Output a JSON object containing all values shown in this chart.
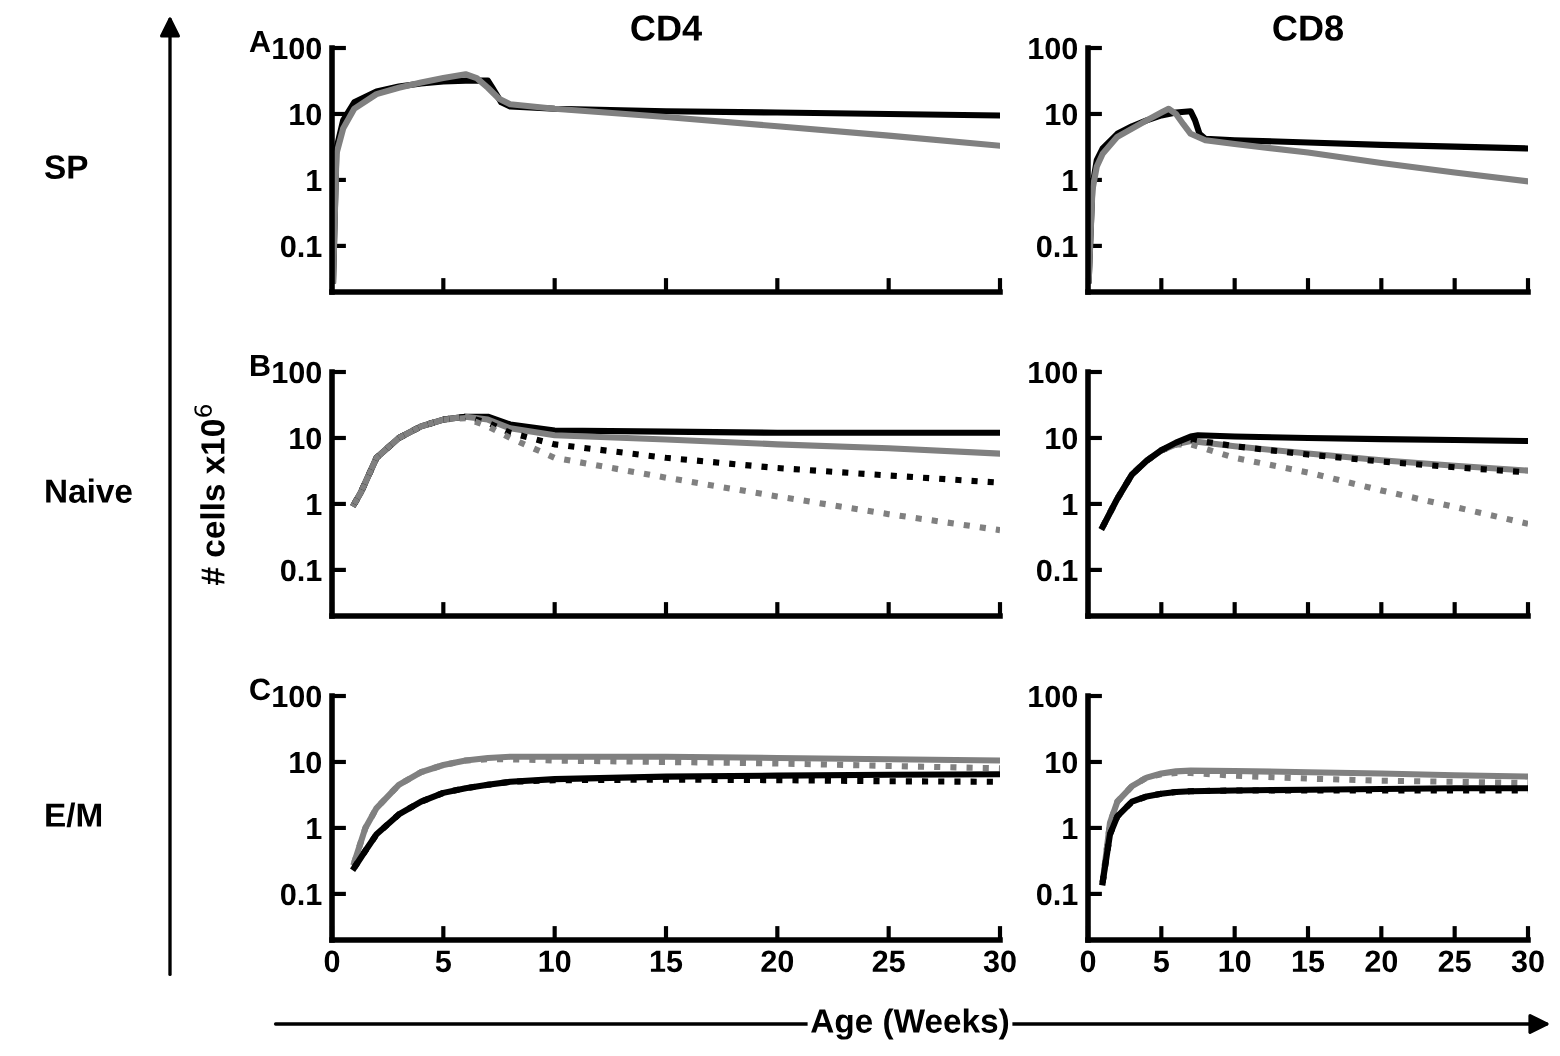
{
  "chart_data": [
    {
      "type": "line",
      "title": "CD4",
      "annotations": [
        "A",
        "SP"
      ],
      "xlim": [
        0,
        30
      ],
      "ylim": [
        0.02,
        100
      ],
      "xticks": [
        0,
        5,
        10,
        15,
        20,
        25,
        30
      ],
      "yticks": [
        0.1,
        1,
        10,
        100
      ],
      "log": "y",
      "grid": false,
      "tick_labels": "y",
      "series": [
        {
          "color": "#000000",
          "line_style": "solid",
          "x": [
            0.05,
            0.2,
            0.5,
            1,
            2,
            3,
            4,
            5,
            6,
            7,
            7.2,
            7.6,
            8,
            10,
            15,
            20,
            25,
            30
          ],
          "values": [
            0.03,
            3,
            8,
            15,
            22,
            26,
            29,
            31,
            32,
            32,
            25,
            15,
            13,
            12,
            11,
            10.5,
            10,
            9.5
          ]
        },
        {
          "color": "#808080",
          "line_style": "solid",
          "x": [
            0.05,
            0.2,
            0.5,
            1,
            2,
            3,
            4,
            5,
            6,
            6.5,
            7,
            7.5,
            8,
            10,
            15,
            20,
            25,
            30
          ],
          "values": [
            0.03,
            2.5,
            6,
            12,
            20,
            25,
            30,
            35,
            40,
            35,
            25,
            17,
            14,
            12,
            9,
            6.5,
            4.7,
            3.3
          ]
        }
      ]
    },
    {
      "type": "line",
      "title": "CD8",
      "xlim": [
        0,
        30
      ],
      "ylim": [
        0.02,
        100
      ],
      "xticks": [
        0,
        5,
        10,
        15,
        20,
        25,
        30
      ],
      "yticks": [
        0.1,
        1,
        10,
        100
      ],
      "log": "y",
      "grid": false,
      "tick_labels": "y",
      "series": [
        {
          "color": "#000000",
          "line_style": "solid",
          "x": [
            0.05,
            0.3,
            0.6,
            1,
            2,
            3,
            4,
            5,
            6,
            7,
            7.3,
            7.6,
            8,
            10,
            15,
            20,
            25,
            30
          ],
          "values": [
            0.03,
            0.8,
            2,
            3,
            5,
            6.5,
            8,
            9.5,
            10.5,
            11,
            8,
            5,
            4.2,
            4,
            3.7,
            3.4,
            3.2,
            3
          ]
        },
        {
          "color": "#808080",
          "line_style": "solid",
          "x": [
            0.05,
            0.3,
            0.6,
            1,
            2,
            3,
            4,
            5,
            5.5,
            6,
            6.5,
            7,
            8,
            10,
            15,
            20,
            25,
            30
          ],
          "values": [
            0.03,
            0.7,
            1.6,
            2.5,
            4.5,
            6,
            8,
            10.5,
            12,
            10,
            7,
            5,
            4,
            3.5,
            2.6,
            1.8,
            1.3,
            0.95
          ]
        }
      ]
    },
    {
      "type": "line",
      "annotations": [
        "B",
        "Naive"
      ],
      "ylabel": "# cells x10$^{6}$",
      "xlim": [
        0,
        30
      ],
      "ylim": [
        0.02,
        100
      ],
      "xticks": [
        0,
        5,
        10,
        15,
        20,
        25,
        30
      ],
      "yticks": [
        0.1,
        1,
        10,
        100
      ],
      "log": "y",
      "grid": false,
      "tick_labels": "y",
      "series": [
        {
          "color": "#000000",
          "line_style": "solid",
          "x": [
            1,
            1.3,
            2,
            3,
            4,
            5,
            6,
            7,
            8,
            10,
            15,
            20,
            25,
            30
          ],
          "values": [
            1,
            1.5,
            5,
            10,
            15,
            19,
            21,
            21,
            16,
            13,
            12.5,
            12,
            12,
            12
          ]
        },
        {
          "color": "#808080",
          "line_style": "solid",
          "x": [
            1,
            1.3,
            2,
            3,
            4,
            5,
            6,
            7,
            8,
            10,
            15,
            20,
            25,
            30
          ],
          "values": [
            1,
            1.5,
            5,
            10,
            15,
            19,
            21,
            19,
            14,
            11,
            9.5,
            8,
            7,
            5.8
          ]
        },
        {
          "color": "#000000",
          "line_style": "dotted",
          "x": [
            1,
            1.3,
            2,
            3,
            4,
            5,
            6,
            7,
            8,
            10,
            15,
            20,
            25,
            30
          ],
          "values": [
            1,
            1.5,
            5,
            10,
            15,
            19,
            21,
            17,
            12,
            8,
            5,
            3.5,
            2.7,
            2.1
          ]
        },
        {
          "color": "#808080",
          "line_style": "dotted",
          "x": [
            1,
            1.3,
            2,
            3,
            4,
            5,
            6,
            7,
            8,
            10,
            15,
            20,
            25,
            30
          ],
          "values": [
            1,
            1.5,
            5,
            10,
            15,
            19,
            20,
            15,
            10,
            5,
            2.5,
            1.3,
            0.7,
            0.4
          ]
        }
      ]
    },
    {
      "type": "line",
      "xlim": [
        0,
        30
      ],
      "ylim": [
        0.02,
        100
      ],
      "xticks": [
        0,
        5,
        10,
        15,
        20,
        25,
        30
      ],
      "yticks": [
        0.1,
        1,
        10,
        100
      ],
      "log": "y",
      "grid": false,
      "tick_labels": "y",
      "series": [
        {
          "color": "#808080",
          "line_style": "solid",
          "x": [
            1,
            2,
            3,
            4,
            5,
            6,
            7,
            10,
            15,
            20,
            25,
            30
          ],
          "values": [
            0.45,
            1.2,
            2.8,
            4.5,
            6.5,
            8,
            9,
            7.5,
            5.8,
            4.6,
            3.8,
            3.2
          ]
        },
        {
          "color": "#000000",
          "line_style": "dotted",
          "x": [
            1,
            2,
            3,
            4,
            5,
            6,
            7,
            10,
            15,
            20,
            25,
            30
          ],
          "values": [
            0.45,
            1.2,
            2.8,
            4.5,
            6.5,
            8,
            9.5,
            7.5,
            5.6,
            4.4,
            3.6,
            3
          ]
        },
        {
          "color": "#808080",
          "line_style": "dotted",
          "x": [
            1,
            2,
            3,
            4,
            5,
            6,
            7,
            10,
            15,
            20,
            25,
            30
          ],
          "values": [
            0.45,
            1.2,
            2.8,
            4.5,
            6.5,
            8,
            8,
            5,
            3,
            1.6,
            0.9,
            0.5
          ]
        },
        {
          "color": "#000000",
          "line_style": "solid",
          "x": [
            1,
            2,
            3,
            4,
            5,
            6,
            7,
            7.5,
            10,
            15,
            20,
            25,
            30
          ],
          "values": [
            0.45,
            1.2,
            2.8,
            4.5,
            6.5,
            8.5,
            10.5,
            11,
            10.5,
            10,
            9.6,
            9.3,
            9
          ]
        }
      ]
    },
    {
      "type": "line",
      "annotations": [
        "C",
        "E/M"
      ],
      "xlabel": "Age (Weeks)",
      "xlim": [
        0,
        30
      ],
      "ylim": [
        0.02,
        100
      ],
      "xticks": [
        0,
        5,
        10,
        15,
        20,
        25,
        30
      ],
      "yticks": [
        0.1,
        1,
        10,
        100
      ],
      "log": "y",
      "grid": false,
      "series": [
        {
          "color": "#808080",
          "line_style": "solid",
          "x": [
            1,
            1.5,
            2,
            3,
            4,
            5,
            6,
            7,
            8,
            10,
            15,
            20,
            25,
            30
          ],
          "values": [
            0.3,
            1,
            2,
            4.5,
            7,
            9,
            10.5,
            11.5,
            12,
            12,
            12,
            11.5,
            11,
            10.5
          ]
        },
        {
          "color": "#808080",
          "line_style": "dotted",
          "x": [
            1,
            1.5,
            2,
            3,
            4,
            5,
            6,
            7,
            8,
            10,
            15,
            20,
            25,
            30
          ],
          "values": [
            0.3,
            1,
            2,
            4.5,
            7,
            9,
            10.5,
            11,
            11,
            10.5,
            10,
            9.5,
            8.7,
            8
          ]
        },
        {
          "color": "#000000",
          "line_style": "solid",
          "x": [
            1,
            1.5,
            2,
            3,
            4,
            5,
            6,
            7,
            8,
            10,
            15,
            20,
            25,
            30
          ],
          "values": [
            0.25,
            0.45,
            0.8,
            1.6,
            2.5,
            3.4,
            4,
            4.5,
            5,
            5.5,
            6,
            6.2,
            6.4,
            6.5
          ]
        },
        {
          "color": "#000000",
          "line_style": "dotted",
          "x": [
            1,
            1.5,
            2,
            3,
            4,
            5,
            6,
            7,
            8,
            10,
            15,
            20,
            25,
            30
          ],
          "values": [
            0.25,
            0.45,
            0.8,
            1.6,
            2.5,
            3.4,
            4,
            4.5,
            5,
            5.3,
            5.4,
            5.3,
            5.1,
            5
          ]
        }
      ]
    },
    {
      "type": "line",
      "xlim": [
        0,
        30
      ],
      "ylim": [
        0.02,
        100
      ],
      "xticks": [
        0,
        5,
        10,
        15,
        20,
        25,
        30
      ],
      "yticks": [
        0.1,
        1,
        10,
        100
      ],
      "log": "y",
      "grid": false,
      "series": [
        {
          "color": "#808080",
          "line_style": "solid",
          "x": [
            1,
            1.5,
            2,
            3,
            4,
            5,
            6,
            7,
            10,
            15,
            20,
            25,
            30
          ],
          "values": [
            0.15,
            1.2,
            2.5,
            4.3,
            5.8,
            6.7,
            7.2,
            7.4,
            7.3,
            7,
            6.7,
            6.3,
            6
          ]
        },
        {
          "color": "#808080",
          "line_style": "dotted",
          "x": [
            1,
            1.5,
            2,
            3,
            4,
            5,
            6,
            7,
            10,
            15,
            20,
            25,
            30
          ],
          "values": [
            0.15,
            1.2,
            2.5,
            4.3,
            5.8,
            6.5,
            6.8,
            6.8,
            6.2,
            5.6,
            5.2,
            5,
            4.8
          ]
        },
        {
          "color": "#000000",
          "line_style": "solid",
          "x": [
            1,
            1.5,
            2,
            3,
            4,
            5,
            6,
            7,
            10,
            15,
            20,
            25,
            30
          ],
          "values": [
            0.15,
            0.8,
            1.5,
            2.5,
            3,
            3.3,
            3.5,
            3.6,
            3.7,
            3.8,
            3.9,
            4,
            4
          ]
        },
        {
          "color": "#000000",
          "line_style": "dotted",
          "x": [
            1,
            1.5,
            2,
            3,
            4,
            5,
            6,
            7,
            10,
            15,
            20,
            25,
            30
          ],
          "values": [
            0.15,
            0.8,
            1.5,
            2.5,
            3,
            3.3,
            3.5,
            3.6,
            3.7,
            3.7,
            3.7,
            3.7,
            3.7
          ]
        }
      ]
    }
  ]
}
